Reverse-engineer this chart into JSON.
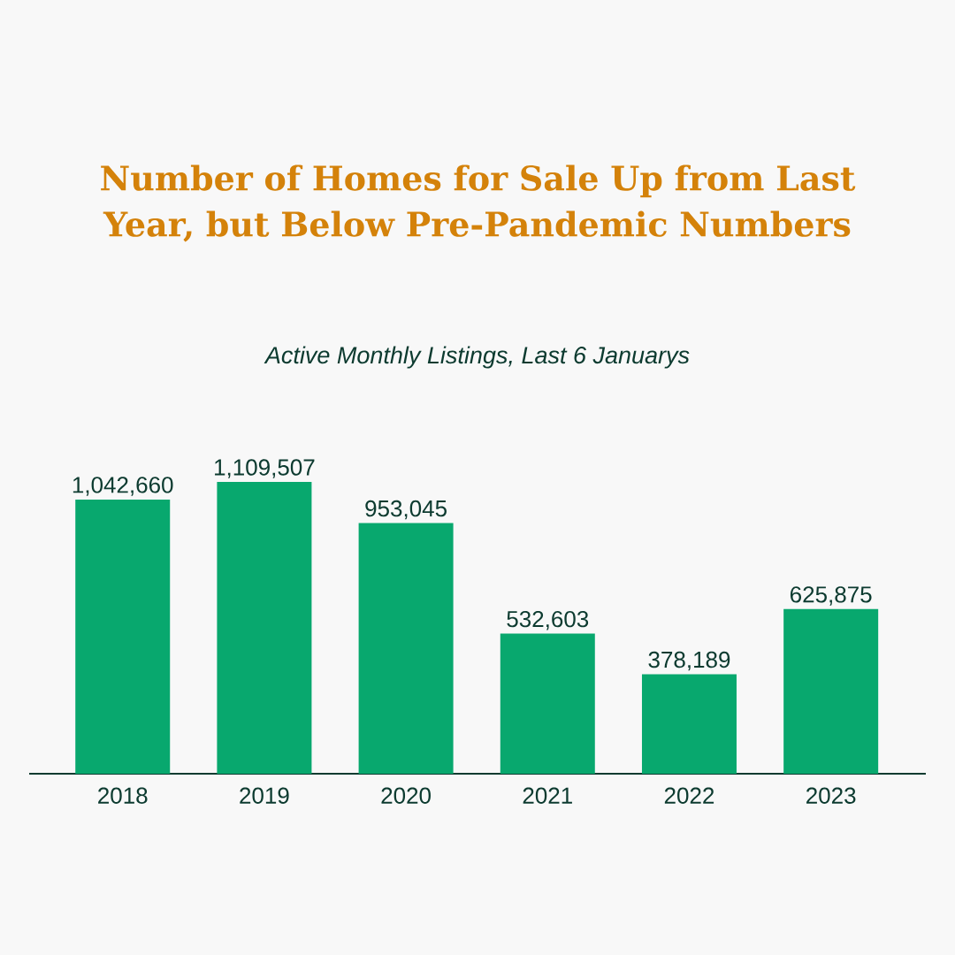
{
  "chart_data": {
    "type": "bar",
    "title": "Number of Homes for Sale Up from Last Year, but Below Pre-Pandemic Numbers",
    "subtitle": "Active Monthly Listings, Last 6 Januarys",
    "categories": [
      "2018",
      "2019",
      "2020",
      "2021",
      "2022",
      "2023"
    ],
    "values": [
      1042660,
      1109507,
      953045,
      532603,
      378189,
      625875
    ],
    "value_labels": [
      "1,042,660",
      "1,109,507",
      "953,045",
      "532,603",
      "378,189",
      "625,875"
    ],
    "color": "#08a86e",
    "tick_labels": "x"
  }
}
